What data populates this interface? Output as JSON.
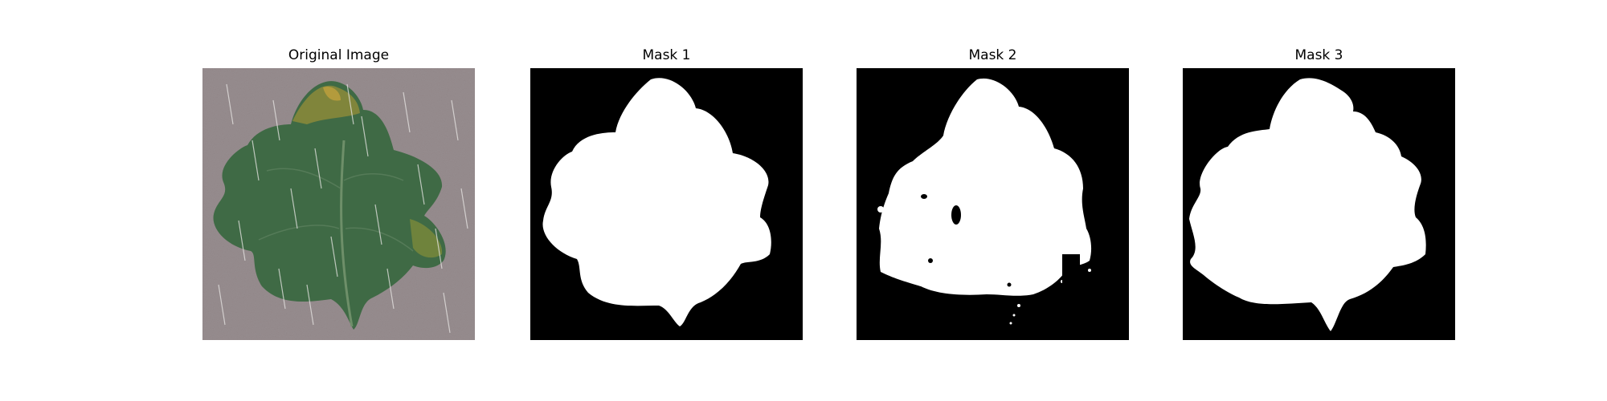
{
  "figure": {
    "panels": [
      {
        "title": "Original Image",
        "kind": "photo",
        "content": "leaf"
      },
      {
        "title": "Mask 1",
        "kind": "mask",
        "content": "leaf-mask"
      },
      {
        "title": "Mask 2",
        "kind": "mask",
        "content": "leaf-mask-noisy"
      },
      {
        "title": "Mask 3",
        "kind": "mask",
        "content": "leaf-mask"
      }
    ]
  },
  "colors": {
    "background": "#ffffff",
    "mask_background": "#000000",
    "mask_foreground": "#ffffff",
    "photo_background": "#978d8f",
    "leaf_green": "#3f6a45",
    "leaf_yellow": "#b39b3c",
    "rain": "#e8e6e4"
  }
}
